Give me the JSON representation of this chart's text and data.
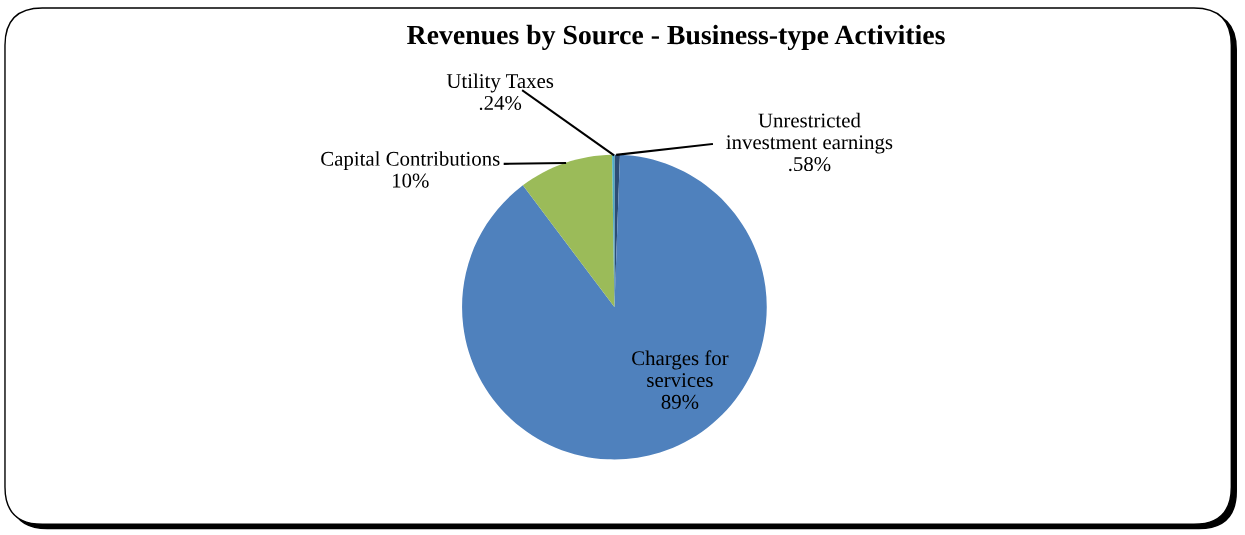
{
  "chart_data": {
    "type": "pie",
    "title": "Revenues by Source - Business-type Activities",
    "categories": [
      "Unrestricted\ninvestment earnings",
      "Charges for\nservices",
      "Capital Contributions",
      "Utility Taxes"
    ],
    "values": [
      0.58,
      89,
      10,
      0.24
    ],
    "value_labels": [
      ".58%",
      "89%",
      "10%",
      ".24%"
    ],
    "colors": [
      "#2c4d75",
      "#4f81bd",
      "#9bbb59",
      "#4bacc6"
    ]
  }
}
